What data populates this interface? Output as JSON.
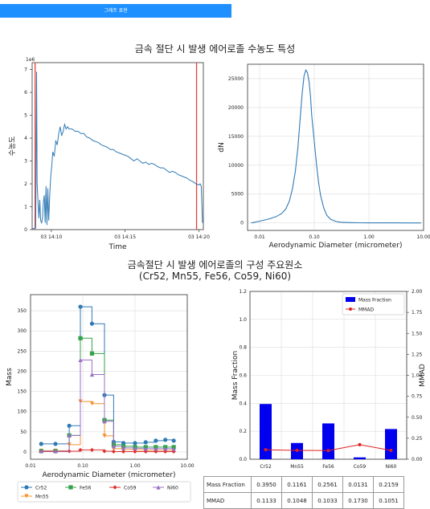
{
  "toolbar": {
    "draw_label": "그래프 표현"
  },
  "section1": {
    "title": "금속 절단 시 발생 에어로졸 수농도 특성"
  },
  "section2": {
    "title_line1": "금속절단 시 발생 에어로졸의 구성 주요원소",
    "title_line2": "(Cr52, Mn55, Fe56, Co59, Ni60)"
  },
  "chart_data": [
    {
      "type": "line",
      "ylabel": "수농도",
      "xlabel": "Time",
      "y_exponent": "1e6",
      "ylim": [
        0,
        7.3
      ],
      "y_ticks": [
        0,
        1,
        2,
        3,
        4,
        5,
        6,
        7
      ],
      "x_ticks": [
        "03 14:10",
        "03 14:15",
        "03 14:20"
      ],
      "x_tick_seconds": [
        30,
        55,
        80
      ],
      "xlim_seconds": [
        23.5,
        81.5
      ],
      "markers_seconds": [
        24.5,
        79.2
      ],
      "marker_color": "#e8413b",
      "line_color": "#2f7ab5",
      "x_seconds": [
        23.5,
        24.4,
        24.7,
        25.0,
        25.2,
        25.5,
        25.8,
        26.1,
        26.4,
        26.7,
        27,
        27.3,
        27.6,
        27.9,
        28.2,
        28.5,
        28.8,
        29.1,
        29.5,
        29.8,
        30.1,
        30.5,
        31,
        31.5,
        32,
        32.5,
        33,
        33.5,
        34,
        34.5,
        35,
        35.5,
        36,
        37,
        38,
        39,
        40,
        41,
        42,
        43,
        44,
        45,
        46,
        47,
        48,
        49,
        50,
        51,
        52,
        53,
        54,
        55,
        56,
        57,
        58,
        59,
        60,
        61,
        62,
        63,
        64,
        65,
        66,
        67,
        68,
        69,
        70,
        71,
        72,
        73,
        74,
        75,
        76,
        77,
        78,
        79,
        80,
        80.4,
        80.8,
        81.2
      ],
      "values": [
        0.05,
        0.05,
        0.1,
        6.9,
        2.0,
        1.2,
        0.5,
        1.3,
        0.4,
        0.3,
        0.5,
        1.2,
        1.5,
        0.3,
        1.9,
        0.2,
        1.8,
        0.4,
        1.6,
        2.3,
        2.7,
        3.4,
        3.2,
        3.9,
        3.7,
        4.2,
        4.5,
        4.1,
        4.3,
        4.6,
        4.4,
        4.5,
        4.4,
        4.4,
        4.3,
        4.3,
        4.2,
        4.2,
        4.05,
        4.0,
        3.9,
        3.85,
        3.8,
        3.7,
        3.65,
        3.6,
        3.5,
        3.5,
        3.4,
        3.35,
        3.3,
        3.25,
        3.2,
        3.1,
        3.0,
        3.1,
        3.0,
        2.9,
        2.95,
        2.85,
        2.9,
        2.85,
        2.75,
        2.7,
        2.7,
        2.6,
        2.5,
        2.55,
        2.5,
        2.4,
        2.35,
        2.3,
        2.25,
        2.15,
        2.1,
        2.0,
        1.95,
        2.0,
        1.9,
        0.3
      ]
    },
    {
      "type": "line",
      "xlabel": "Aerodynamic Diameter (micrometer)",
      "ylabel": "dN",
      "xscale": "log",
      "xlim": [
        0.006,
        10
      ],
      "ylim": [
        -1300,
        27500
      ],
      "x_ticks": [
        0.01,
        0.1,
        1,
        10
      ],
      "x_tick_labels": [
        "0.01",
        "0.10",
        "1.00",
        "10.00"
      ],
      "y_ticks": [
        0,
        5000,
        10000,
        15000,
        20000,
        25000
      ],
      "grid": true,
      "line_color": "#2f7ab5",
      "x": [
        0.007,
        0.01,
        0.015,
        0.02,
        0.025,
        0.03,
        0.035,
        0.04,
        0.045,
        0.05,
        0.055,
        0.06,
        0.065,
        0.07,
        0.075,
        0.08,
        0.085,
        0.09,
        0.1,
        0.11,
        0.12,
        0.13,
        0.15,
        0.17,
        0.2,
        0.25,
        0.3,
        0.4,
        0.5,
        0.7,
        1,
        1.5,
        2,
        3,
        5,
        9
      ],
      "values": [
        0,
        300,
        700,
        1100,
        1600,
        2400,
        3800,
        6000,
        9000,
        13000,
        18000,
        22500,
        25500,
        26500,
        26000,
        24500,
        22000,
        18500,
        14000,
        10000,
        7000,
        4800,
        2500,
        1300,
        600,
        250,
        120,
        60,
        40,
        20,
        10,
        5,
        2,
        1,
        0,
        0
      ]
    },
    {
      "type": "line",
      "xlabel": "Aerodynamic Diameter (micrometer)",
      "ylabel": "Mass",
      "xscale": "log",
      "step": true,
      "xlim": [
        0.01,
        10
      ],
      "ylim": [
        -18,
        390
      ],
      "x_ticks": [
        0.01,
        0.1,
        1,
        10
      ],
      "x_tick_labels": [
        "0.01",
        "0.10",
        "1.00",
        "10.00"
      ],
      "y_ticks": [
        0,
        50,
        100,
        150,
        200,
        250,
        300,
        350
      ],
      "grid": true,
      "x": [
        0.016,
        0.03,
        0.055,
        0.09,
        0.15,
        0.26,
        0.39,
        0.6,
        1.0,
        1.6,
        2.5,
        3.8,
        5.5
      ],
      "legend": [
        "Cr52",
        "Fe56",
        "Co59",
        "Ni60",
        "Mn55"
      ],
      "series": [
        {
          "name": "Cr52",
          "color": "#2f7ab5",
          "marker": "o",
          "values": [
            20,
            20,
            65,
            360,
            318,
            141,
            25,
            22,
            22,
            24,
            28,
            30,
            28
          ]
        },
        {
          "name": "Mn55",
          "color": "#f5922f",
          "marker": "v",
          "values": [
            3,
            3,
            18,
            125,
            120,
            40,
            8,
            6,
            5,
            4,
            4,
            4,
            4
          ]
        },
        {
          "name": "Fe56",
          "color": "#34a24a",
          "marker": "s",
          "values": [
            2,
            2,
            41,
            282,
            244,
            79,
            18,
            14,
            12,
            12,
            12,
            12,
            12
          ]
        },
        {
          "name": "Co59",
          "color": "#e02e2e",
          "marker": "D",
          "values": [
            1,
            1,
            2,
            5,
            5,
            2,
            1,
            1,
            1,
            1,
            1,
            1,
            1
          ]
        },
        {
          "name": "Ni60",
          "color": "#9a6fc5",
          "marker": "^",
          "values": [
            2,
            2,
            41,
            228,
            192,
            76,
            14,
            10,
            9,
            8,
            8,
            8,
            7
          ]
        }
      ]
    },
    {
      "type": "bar",
      "categories": [
        "Cr52",
        "Mn55",
        "Fe56",
        "Co59",
        "Ni60"
      ],
      "ylabel": "Mass Fraction",
      "y2label": "MMAD",
      "ylim": [
        0,
        1.2
      ],
      "y2lim": [
        0,
        2.0
      ],
      "y_ticks": [
        0,
        0.2,
        0.4,
        0.6,
        0.8,
        1.0,
        1.2
      ],
      "y_tick_labels": [
        "0.0",
        "0.2",
        "0.4",
        "0.6",
        "0.8",
        "1.0",
        "1.2"
      ],
      "y2_ticks": [
        0,
        0.25,
        0.5,
        0.75,
        1.0,
        1.25,
        1.5,
        1.75,
        2.0
      ],
      "y2_tick_labels": [
        "0.00",
        "0.25",
        "0.50",
        "0.75",
        "1.00",
        "1.25",
        "1.50",
        "1.75",
        "2.00"
      ],
      "legend": [
        "Mass Fraction",
        "MMAD"
      ],
      "bar_color": "#0000ee",
      "line_color": "#e02020",
      "series": [
        {
          "name": "Mass Fraction",
          "values": [
            0.395,
            0.1161,
            0.2561,
            0.0131,
            0.2159
          ]
        },
        {
          "name": "MMAD",
          "values": [
            0.1133,
            0.1048,
            0.1033,
            0.173,
            0.1051
          ]
        }
      ]
    }
  ],
  "table": {
    "rows": [
      {
        "label": "Mass Fraction",
        "cells": [
          "0.3950",
          "0.1161",
          "0.2561",
          "0.0131",
          "0.2159"
        ]
      },
      {
        "label": "MMAD",
        "cells": [
          "0.1133",
          "0.1048",
          "0.1033",
          "0.1730",
          "0.1051"
        ]
      }
    ]
  }
}
